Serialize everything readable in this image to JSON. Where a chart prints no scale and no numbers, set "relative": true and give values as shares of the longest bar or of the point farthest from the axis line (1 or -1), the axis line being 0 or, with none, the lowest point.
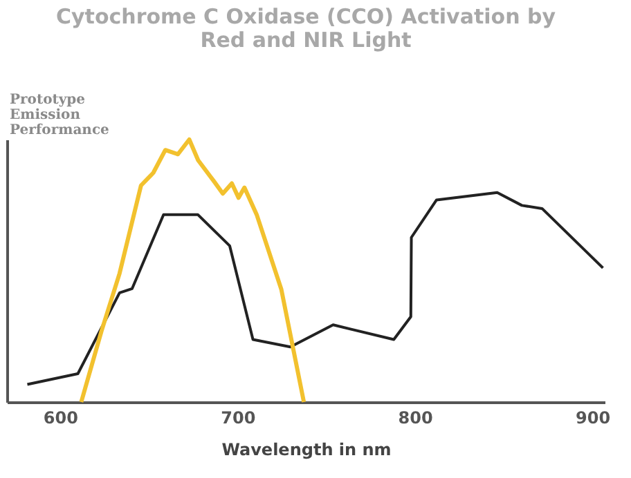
{
  "chart_data": {
    "type": "line",
    "title": [
      "Cytochrome C Oxidase (CCO) Activation by",
      "Red and NIR Light"
    ],
    "xlabel": "Wavelength in nm",
    "relative": true,
    "xlim": [
      570,
      907
    ],
    "xticks": [
      600,
      700,
      800,
      900
    ],
    "grid": false,
    "marker": "none",
    "line_style": "solid",
    "annotations": [
      "Prototype Emission Performance"
    ],
    "series": [
      {
        "color": "#222222",
        "x": [
          581.5,
          610,
          633.5,
          640.6,
          658.3,
          677.6,
          695.6,
          708.7,
          729.8,
          753.9,
          788.1,
          797.7,
          798,
          812.2,
          846.4,
          860.3,
          871.7,
          906
        ],
        "values": [
          0.067,
          0.108,
          0.416,
          0.432,
          0.714,
          0.714,
          0.595,
          0.238,
          0.21,
          0.294,
          0.238,
          0.325,
          0.627,
          0.77,
          0.798,
          0.749,
          0.737,
          0.511
        ]
      },
      {
        "color": "#f2c12e",
        "x": [
          611.9,
          623.3,
          633.5,
          645.6,
          652.5,
          659.3,
          666.4,
          672.8,
          677.8,
          686.7,
          691.7,
          696.8,
          700.6,
          703.9,
          710.8,
          724.7,
          737.4
        ],
        "values": [
          0,
          0.27,
          0.49,
          0.825,
          0.873,
          0.96,
          0.944,
          1.0,
          0.921,
          0.841,
          0.794,
          0.833,
          0.778,
          0.817,
          0.714,
          0.429,
          0
        ]
      }
    ]
  }
}
